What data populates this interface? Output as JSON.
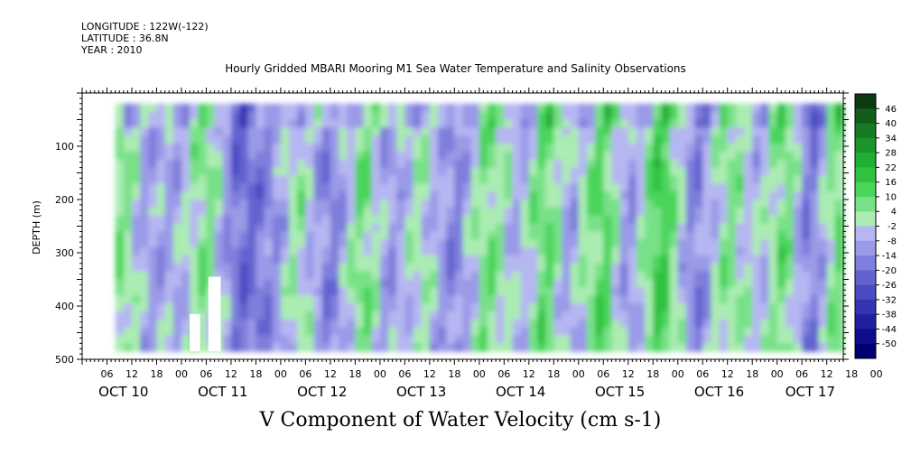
{
  "header": {
    "longitude": "LONGITUDE : 122W(-122)",
    "latitude": "LATITUDE : 36.8N",
    "year": "YEAR : 2010"
  },
  "chart_data": {
    "type": "heatmap",
    "title": "Hourly Gridded MBARI Mooring M1 Sea Water Temperature and Salinity Observations",
    "xlabel": "V Component of Water Velocity (cm s-1)",
    "ylabel": "DEPTH (m)",
    "y_range": [
      500,
      0
    ],
    "y_ticks": [
      100,
      200,
      300,
      400,
      500
    ],
    "x_range_hours": [
      0,
      184
    ],
    "x_hour_ticks": [
      "06",
      "12",
      "18",
      "00",
      "06",
      "12",
      "18",
      "00",
      "06",
      "12",
      "18",
      "00",
      "06",
      "12",
      "18",
      "00",
      "06",
      "12",
      "18",
      "00",
      "06",
      "12",
      "18",
      "00",
      "06",
      "12",
      "18",
      "00",
      "06",
      "12",
      "18",
      "00"
    ],
    "x_day_labels": [
      "OCT 10",
      "OCT 11",
      "OCT 12",
      "OCT 13",
      "OCT 14",
      "OCT 15",
      "OCT 16",
      "OCT 17"
    ],
    "colorbar_levels": [
      "46",
      "40",
      "34",
      "28",
      "22",
      "16",
      "10",
      "4",
      "-2",
      "-8",
      "-14",
      "-20",
      "-26",
      "-32",
      "-38",
      "-44",
      "-50"
    ],
    "colorbar_colors": [
      "#0c3a12",
      "#125c1c",
      "#177a24",
      "#1c962c",
      "#21ae34",
      "#2ec23f",
      "#49d45a",
      "#78e187",
      "#aaecb2",
      "#b6b6f2",
      "#9a9ae8",
      "#7e7edc",
      "#6363d0",
      "#4b4bc4",
      "#3535b4",
      "#2020a0",
      "#0e0e8a",
      "#000070"
    ],
    "v_profile_by_time": [
      {
        "hour": 10,
        "v": 6
      },
      {
        "hour": 16,
        "v": -10
      },
      {
        "hour": 24,
        "v": -6
      },
      {
        "hour": 30,
        "v": 8
      },
      {
        "hour": 38,
        "v": -22
      },
      {
        "hour": 46,
        "v": -14
      },
      {
        "hour": 52,
        "v": 4
      },
      {
        "hour": 60,
        "v": -18
      },
      {
        "hour": 68,
        "v": 10
      },
      {
        "hour": 74,
        "v": -12
      },
      {
        "hour": 82,
        "v": 2
      },
      {
        "hour": 90,
        "v": -16
      },
      {
        "hour": 98,
        "v": 8
      },
      {
        "hour": 106,
        "v": -8
      },
      {
        "hour": 112,
        "v": 12
      },
      {
        "hour": 118,
        "v": -10
      },
      {
        "hour": 126,
        "v": 14
      },
      {
        "hour": 132,
        "v": -14
      },
      {
        "hour": 140,
        "v": 18
      },
      {
        "hour": 148,
        "v": -18
      },
      {
        "hour": 156,
        "v": 6
      },
      {
        "hour": 164,
        "v": -6
      },
      {
        "hour": 170,
        "v": 10
      },
      {
        "hour": 176,
        "v": -20
      },
      {
        "hour": 182,
        "v": 8
      }
    ]
  }
}
